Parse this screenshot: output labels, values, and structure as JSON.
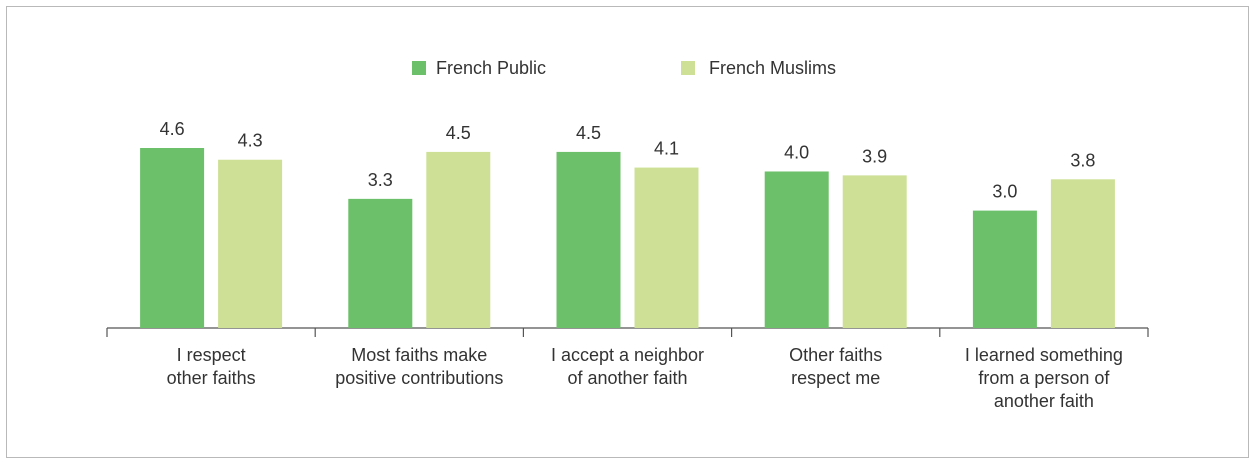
{
  "chart_data": {
    "type": "bar",
    "categories": [
      [
        "I respect",
        "other faiths"
      ],
      [
        "Most faiths make",
        "positive contributions"
      ],
      [
        "I accept a neighbor",
        "of another faith"
      ],
      [
        "Other faiths",
        "respect me"
      ],
      [
        "I learned something",
        "from a person of",
        "another faith"
      ]
    ],
    "series": [
      {
        "name": "French Public",
        "color": "#6cc06a",
        "values": [
          4.6,
          3.3,
          4.5,
          4.0,
          3.0
        ],
        "labels": [
          "4.6",
          "3.3",
          "4.5",
          "4.0",
          "3.0"
        ]
      },
      {
        "name": "French Muslims",
        "color": "#cde096",
        "values": [
          4.3,
          4.5,
          4.1,
          3.9,
          3.8
        ],
        "labels": [
          "4.3",
          "4.5",
          "4.1",
          "3.9",
          "3.8"
        ]
      }
    ],
    "ylim": [
      0,
      4.6
    ],
    "legend": "top-center",
    "grid": false
  }
}
